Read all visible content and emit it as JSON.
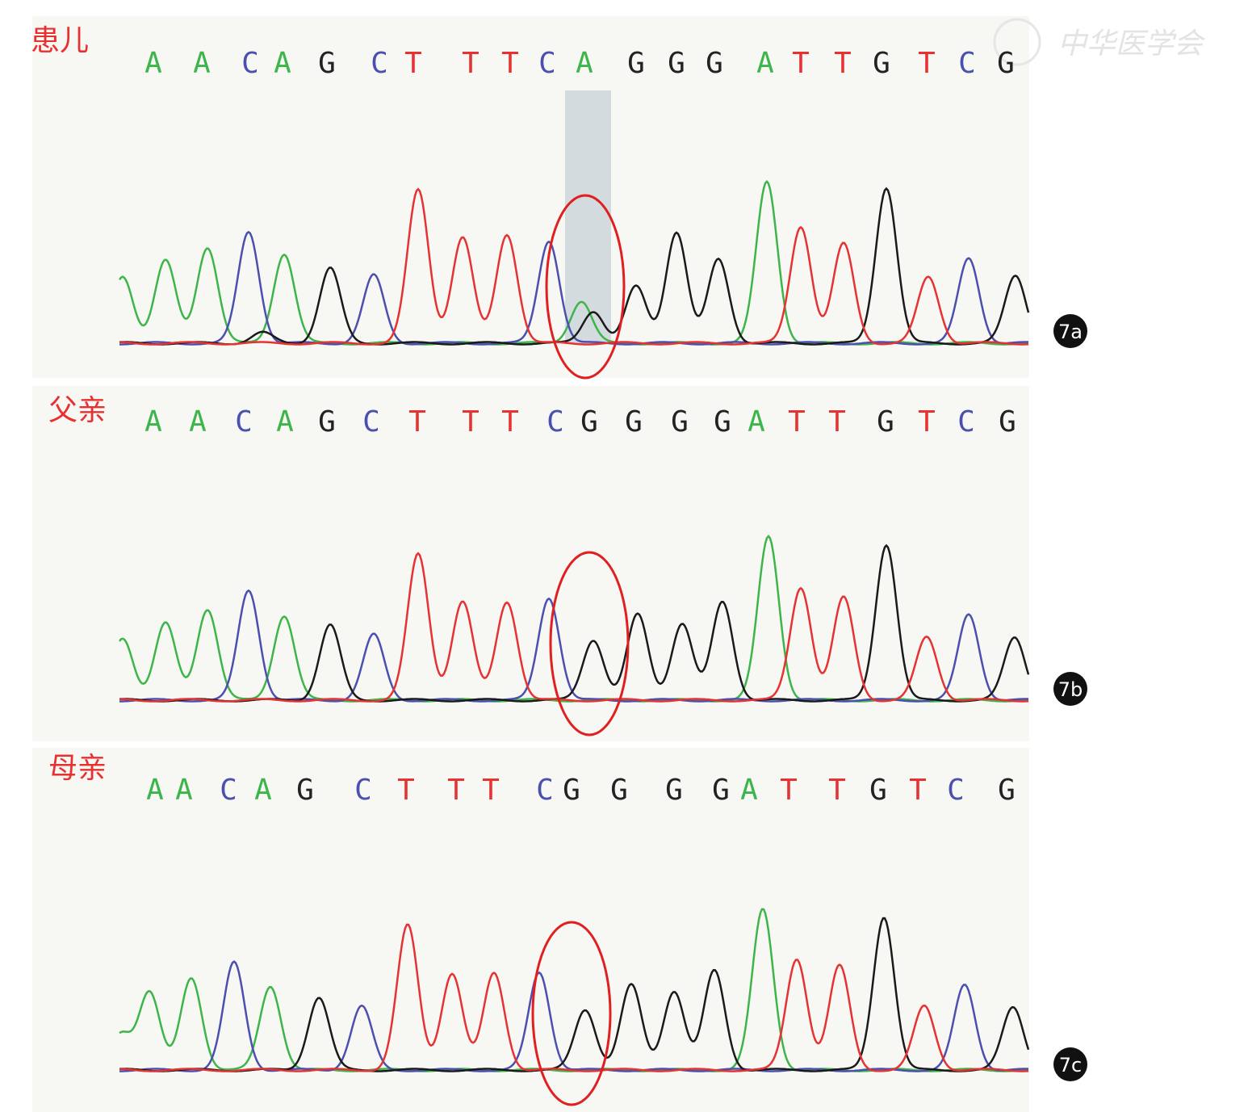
{
  "watermark": "中华医学会",
  "panels": [
    {
      "label": "患儿",
      "id": "7a",
      "bases": [
        "A",
        "A",
        "C",
        "A",
        "G",
        "C",
        "T",
        "T",
        "T",
        "C",
        "A",
        "G",
        "G",
        "G",
        "A",
        "T",
        "T",
        "G",
        "T",
        "C",
        "G"
      ]
    },
    {
      "label": "父亲",
      "id": "7b",
      "bases": [
        "A",
        "A",
        "C",
        "A",
        "G",
        "C",
        "T",
        "T",
        "T",
        "C",
        "G",
        "G",
        "G",
        "G",
        "A",
        "T",
        "T",
        "G",
        "T",
        "C",
        "G"
      ]
    },
    {
      "label": "母亲",
      "id": "7c",
      "bases": [
        "A",
        "A",
        "C",
        "A",
        "G",
        "C",
        "T",
        "T",
        "T",
        "C",
        "G",
        "G",
        "G",
        "G",
        "A",
        "T",
        "T",
        "G",
        "T",
        "C",
        "G"
      ]
    }
  ]
}
